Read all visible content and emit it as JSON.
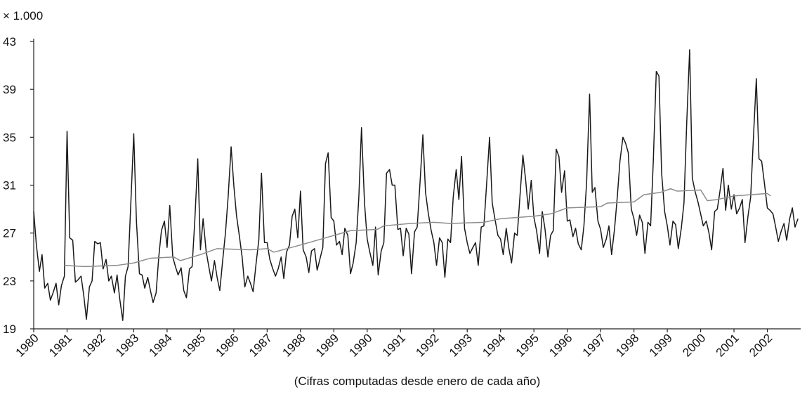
{
  "chart_data": {
    "type": "line",
    "unit_label": "× 1.000",
    "x_axis_label": "(Cifras computadas desde enero de cada año)",
    "xlim": [
      1980,
      2003
    ],
    "xticks": [
      1980,
      1981,
      1982,
      1983,
      1984,
      1985,
      1986,
      1987,
      1988,
      1989,
      1990,
      1991,
      1992,
      1993,
      1994,
      1995,
      1996,
      1997,
      1998,
      1999,
      2000,
      2001,
      2002
    ],
    "ylim": [
      19,
      43
    ],
    "yticks": [
      19,
      23,
      27,
      31,
      35,
      39,
      43
    ],
    "x": [
      1980,
      1980.08,
      1980.17,
      1980.25,
      1980.33,
      1980.42,
      1980.5,
      1980.58,
      1980.67,
      1980.75,
      1980.83,
      1980.92,
      1981,
      1981.08,
      1981.17,
      1981.25,
      1981.33,
      1981.42,
      1981.5,
      1981.58,
      1981.67,
      1981.75,
      1981.83,
      1981.92,
      1982,
      1982.08,
      1982.17,
      1982.25,
      1982.33,
      1982.42,
      1982.5,
      1982.58,
      1982.67,
      1982.75,
      1982.83,
      1982.92,
      1983,
      1983.08,
      1983.17,
      1983.25,
      1983.33,
      1983.42,
      1983.5,
      1983.58,
      1983.67,
      1983.75,
      1983.83,
      1983.92,
      1984,
      1984.08,
      1984.17,
      1984.25,
      1984.33,
      1984.42,
      1984.5,
      1984.58,
      1984.67,
      1984.75,
      1984.83,
      1984.92,
      1985,
      1985.08,
      1985.17,
      1985.25,
      1985.33,
      1985.42,
      1985.5,
      1985.58,
      1985.67,
      1985.75,
      1985.83,
      1985.92,
      1986,
      1986.08,
      1986.17,
      1986.25,
      1986.33,
      1986.42,
      1986.5,
      1986.58,
      1986.67,
      1986.75,
      1986.83,
      1986.92,
      1987,
      1987.08,
      1987.17,
      1987.25,
      1987.33,
      1987.42,
      1987.5,
      1987.58,
      1987.67,
      1987.75,
      1987.83,
      1987.92,
      1988,
      1988.08,
      1988.17,
      1988.25,
      1988.33,
      1988.42,
      1988.5,
      1988.58,
      1988.67,
      1988.75,
      1988.83,
      1988.92,
      1989,
      1989.08,
      1989.17,
      1989.25,
      1989.33,
      1989.42,
      1989.5,
      1989.58,
      1989.67,
      1989.75,
      1989.83,
      1989.92,
      1990,
      1990.08,
      1990.17,
      1990.25,
      1990.33,
      1990.42,
      1990.5,
      1990.58,
      1990.67,
      1990.75,
      1990.83,
      1990.92,
      1991,
      1991.08,
      1991.17,
      1991.25,
      1991.33,
      1991.42,
      1991.5,
      1991.58,
      1991.67,
      1991.75,
      1991.83,
      1991.92,
      1992,
      1992.08,
      1992.17,
      1992.25,
      1992.33,
      1992.42,
      1992.5,
      1992.58,
      1992.67,
      1992.75,
      1992.83,
      1992.92,
      1993,
      1993.08,
      1993.17,
      1993.25,
      1993.33,
      1993.42,
      1993.5,
      1993.58,
      1993.67,
      1993.75,
      1993.83,
      1993.92,
      1994,
      1994.08,
      1994.17,
      1994.25,
      1994.33,
      1994.42,
      1994.5,
      1994.58,
      1994.67,
      1994.75,
      1994.83,
      1994.92,
      1995,
      1995.08,
      1995.17,
      1995.25,
      1995.33,
      1995.42,
      1995.5,
      1995.58,
      1995.67,
      1995.75,
      1995.83,
      1995.92,
      1996,
      1996.08,
      1996.17,
      1996.25,
      1996.33,
      1996.42,
      1996.5,
      1996.58,
      1996.67,
      1996.75,
      1996.83,
      1996.92,
      1997,
      1997.08,
      1997.17,
      1997.25,
      1997.33,
      1997.42,
      1997.5,
      1997.58,
      1997.67,
      1997.75,
      1997.83,
      1997.92,
      1998,
      1998.08,
      1998.17,
      1998.25,
      1998.33,
      1998.42,
      1998.5,
      1998.58,
      1998.67,
      1998.75,
      1998.83,
      1998.92,
      1999,
      1999.08,
      1999.17,
      1999.25,
      1999.33,
      1999.42,
      1999.5,
      1999.58,
      1999.67,
      1999.75,
      1999.83,
      1999.92,
      2000,
      2000.08,
      2000.17,
      2000.25,
      2000.33,
      2000.42,
      2000.5,
      2000.58,
      2000.67,
      2000.75,
      2000.83,
      2000.92,
      2001,
      2001.08,
      2001.17,
      2001.25,
      2001.33,
      2001.42,
      2001.5,
      2001.58,
      2001.67,
      2001.75,
      2001.83,
      2001.92,
      2002,
      2002.08,
      2002.17,
      2002.25,
      2002.33,
      2002.42,
      2002.5,
      2002.58,
      2002.67,
      2002.75,
      2002.83,
      2002.92
    ],
    "series": [
      {
        "color": "#1a1a1a",
        "values": [
          28.8,
          26.0,
          23.8,
          25.2,
          22.4,
          22.8,
          21.4,
          22.0,
          22.8,
          21.0,
          22.6,
          23.4,
          35.5,
          26.6,
          26.4,
          22.9,
          23.1,
          23.4,
          21.8,
          19.8,
          22.5,
          23.0,
          26.3,
          26.1,
          26.2,
          24.0,
          24.8,
          23.0,
          23.4,
          22.0,
          23.5,
          21.5,
          19.7,
          23.4,
          24.2,
          30.0,
          35.3,
          28.0,
          23.6,
          23.5,
          22.4,
          23.3,
          22.2,
          21.2,
          22.0,
          25.0,
          27.2,
          28.0,
          25.8,
          29.3,
          25.0,
          24.2,
          23.5,
          24.1,
          22.2,
          21.6,
          24.0,
          24.2,
          28.0,
          33.2,
          25.6,
          28.2,
          25.5,
          24.2,
          23.0,
          24.7,
          23.3,
          22.2,
          24.8,
          27.0,
          30.0,
          34.2,
          31.0,
          28.5,
          26.7,
          25.0,
          22.5,
          23.4,
          22.8,
          22.1,
          24.5,
          26.4,
          32.0,
          26.2,
          26.2,
          24.8,
          24.0,
          23.4,
          24.0,
          25.0,
          23.2,
          25.4,
          26.0,
          28.4,
          29.0,
          26.6,
          30.5,
          25.6,
          25.0,
          23.7,
          25.5,
          25.7,
          23.9,
          24.8,
          25.8,
          32.8,
          33.7,
          28.3,
          28.0,
          26.0,
          26.3,
          25.2,
          27.4,
          26.8,
          23.6,
          24.5,
          26.2,
          30.0,
          35.8,
          29.5,
          26.5,
          25.4,
          24.3,
          27.5,
          23.5,
          25.5,
          26.2,
          32.0,
          32.3,
          31.0,
          31.0,
          27.3,
          27.4,
          25.1,
          27.4,
          26.9,
          23.6,
          27.1,
          27.5,
          31.0,
          35.2,
          30.4,
          28.7,
          27.2,
          26.2,
          24.3,
          26.6,
          26.2,
          23.3,
          26.5,
          26.2,
          30.0,
          32.3,
          29.8,
          33.4,
          27.4,
          26.2,
          25.3,
          25.8,
          26.2,
          24.3,
          27.5,
          27.6,
          31.0,
          35.0,
          29.5,
          28.2,
          26.8,
          26.5,
          25.2,
          27.4,
          25.7,
          24.5,
          27.0,
          26.8,
          30.0,
          33.5,
          31.5,
          29.0,
          31.4,
          28.3,
          27.2,
          25.3,
          28.8,
          27.4,
          25.0,
          26.8,
          27.2,
          34.0,
          33.4,
          30.4,
          32.2,
          28.0,
          28.1,
          26.7,
          27.4,
          26.1,
          25.6,
          27.6,
          31.2,
          38.6,
          30.4,
          30.8,
          28.0,
          27.3,
          25.8,
          26.5,
          27.6,
          25.2,
          27.4,
          30.0,
          33.0,
          35.0,
          34.5,
          33.7,
          29.0,
          28.2,
          26.8,
          28.5,
          27.9,
          25.3,
          27.9,
          27.6,
          33.0,
          40.5,
          40.1,
          32.0,
          28.8,
          27.6,
          26.0,
          28.0,
          27.7,
          25.7,
          27.4,
          29.5,
          36.0,
          42.3,
          31.6,
          30.5,
          29.6,
          28.6,
          27.6,
          28.0,
          27.0,
          25.6,
          28.8,
          29.0,
          30.5,
          32.4,
          28.9,
          31.0,
          29.0,
          30.2,
          28.6,
          29.1,
          29.8,
          26.2,
          28.4,
          30.0,
          34.8,
          39.9,
          33.2,
          33.0,
          31.0,
          29.1,
          28.9,
          28.6,
          27.5,
          26.3,
          27.2,
          27.8,
          26.4,
          28.2,
          29.1,
          27.5,
          28.2
        ]
      },
      {
        "color": "#8c8c8c",
        "x": [
          1980.92,
          1981.5,
          1982.5,
          1983,
          1983.5,
          1984.2,
          1984.4,
          1985,
          1985.5,
          1986.5,
          1987,
          1987.2,
          1988,
          1989,
          1989.5,
          1990.3,
          1990.5,
          1991.3,
          1992,
          1992.5,
          1993.5,
          1994,
          1995,
          1995.5,
          1996,
          1997,
          1997.2,
          1998,
          1998.3,
          1998.8,
          1999.1,
          1999.3,
          2000,
          2000.2,
          2000.5,
          2001,
          2002,
          2002.1
        ],
        "values": [
          24.3,
          24.2,
          24.3,
          24.5,
          24.9,
          25.0,
          24.7,
          25.2,
          25.7,
          25.6,
          25.7,
          25.4,
          26.0,
          26.8,
          27.2,
          27.3,
          27.6,
          27.8,
          27.9,
          27.8,
          27.9,
          28.2,
          28.4,
          28.6,
          29.1,
          29.2,
          29.5,
          29.6,
          30.2,
          30.4,
          30.7,
          30.5,
          30.6,
          29.7,
          29.8,
          30.1,
          30.3,
          30.1
        ]
      }
    ]
  }
}
